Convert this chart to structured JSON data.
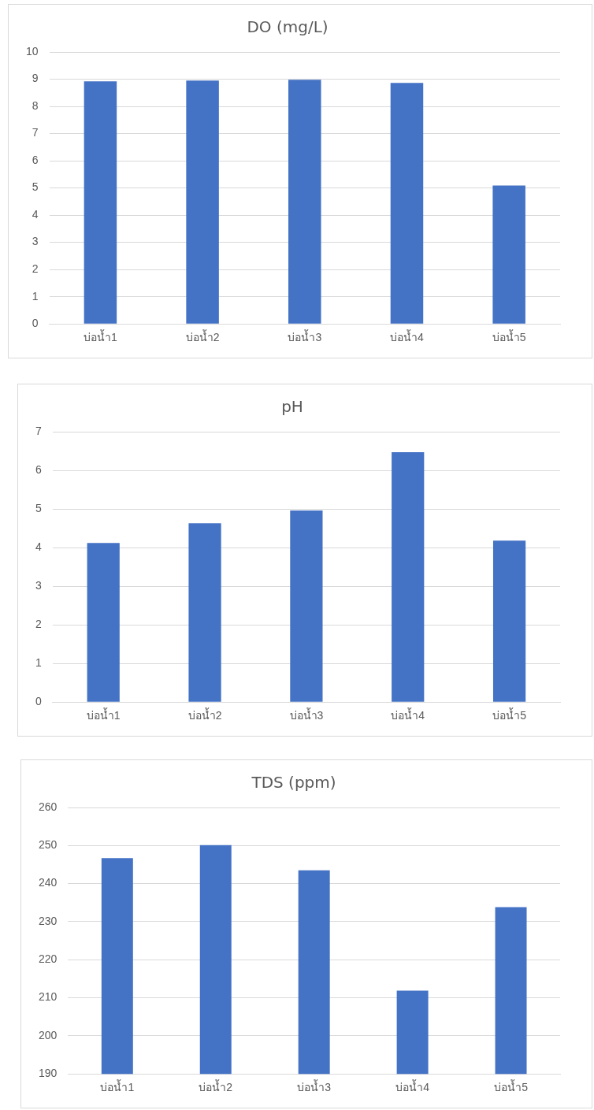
{
  "chart_data": [
    {
      "type": "bar",
      "title": "DO (mg/L)",
      "categories": [
        "บ่อน้ำ1",
        "บ่อน้ำ2",
        "บ่อน้ำ3",
        "บ่อน้ำ4",
        "บ่อน้ำ5"
      ],
      "values": [
        8.92,
        8.95,
        8.98,
        8.86,
        5.09
      ],
      "color": "#4472c4",
      "ylim": [
        0,
        10
      ],
      "yticks": [
        0,
        1,
        2,
        3,
        4,
        5,
        6,
        7,
        8,
        9,
        10
      ],
      "grid": "y"
    },
    {
      "type": "bar",
      "title": "pH",
      "categories": [
        "บ่อน้ำ1",
        "บ่อน้ำ2",
        "บ่อน้ำ3",
        "บ่อน้ำ4",
        "บ่อน้ำ5"
      ],
      "values": [
        4.12,
        4.63,
        4.96,
        6.47,
        4.18
      ],
      "color": "#4472c4",
      "ylim": [
        0,
        7
      ],
      "yticks": [
        0,
        1,
        2,
        3,
        4,
        5,
        6,
        7
      ],
      "grid": "y"
    },
    {
      "type": "bar",
      "title": "TDS (ppm)",
      "categories": [
        "บ่อน้ำ1",
        "บ่อน้ำ2",
        "บ่อน้ำ3",
        "บ่อน้ำ4",
        "บ่อน้ำ5"
      ],
      "values": [
        246.7,
        250.1,
        243.5,
        211.9,
        233.8
      ],
      "color": "#4472c4",
      "ylim": [
        190,
        260
      ],
      "yticks": [
        190,
        200,
        210,
        220,
        230,
        240,
        250,
        260
      ],
      "grid": "y"
    }
  ]
}
